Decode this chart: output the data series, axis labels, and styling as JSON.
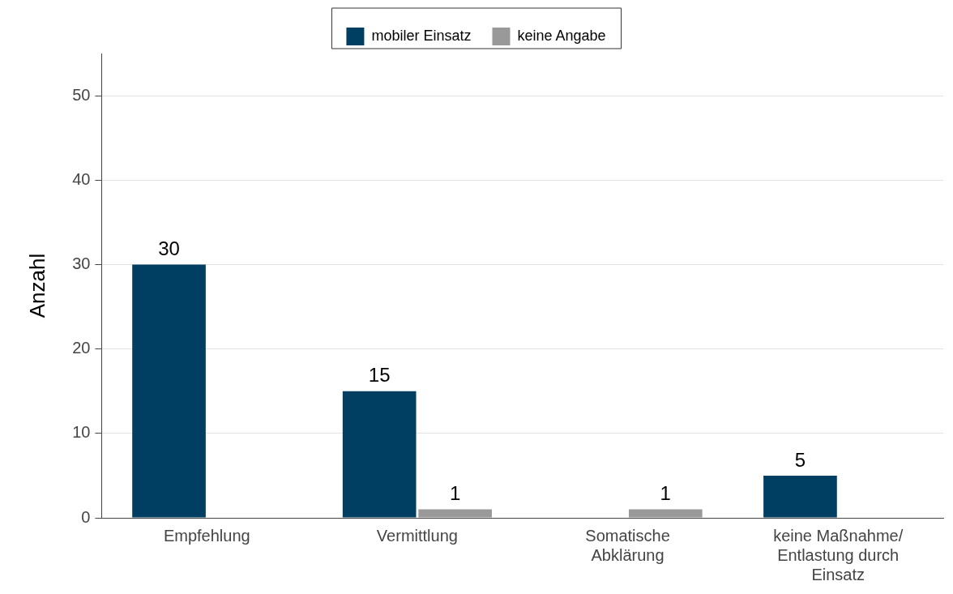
{
  "chart_data": {
    "type": "bar",
    "ylabel": "Anzahl",
    "categories": [
      "Empfehlung",
      "Vermittlung",
      "Somatische\nAbklärung",
      "keine Maßnahme/\nEntlastung durch\nEinsatz"
    ],
    "series": [
      {
        "name": "mobiler Einsatz",
        "color": "#003f62",
        "values": [
          30,
          15,
          null,
          5
        ]
      },
      {
        "name": "keine Angabe",
        "color": "#999999",
        "values": [
          null,
          1,
          1,
          null
        ]
      }
    ],
    "ylim": [
      0,
      55
    ],
    "yticks": [
      0,
      10,
      20,
      30,
      40,
      50
    ],
    "grid": "y",
    "legend": "top",
    "data_labels": true
  }
}
